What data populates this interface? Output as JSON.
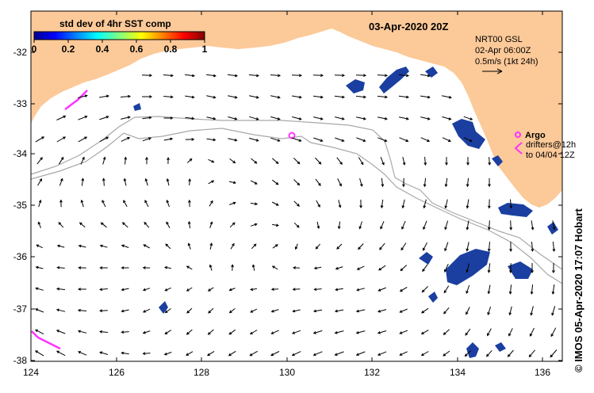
{
  "map": {
    "date_title": "03-Apr-2020 20Z",
    "colorbar": {
      "title": "std dev of 4hr SST comp",
      "ticks": [
        "0",
        "0.2",
        "0.4",
        "0.6",
        "0.8",
        "1"
      ]
    },
    "y_ticks": [
      "-32",
      "-33",
      "-34",
      "-35",
      "-36",
      "-37",
      "-38"
    ],
    "x_ticks": [
      "124",
      "126",
      "128",
      "130",
      "132",
      "134",
      "136"
    ],
    "product": {
      "line1": "NRT00 GSL",
      "line2": "02-Apr 06:00Z",
      "line3": "0.5m/s (1kt 24h)"
    },
    "legend": {
      "argo": "Argo",
      "drifters_line1": "drifters@12h",
      "drifters_line2": "to 04/04 12Z"
    },
    "credit": "© IMOS 05-Apr-2020 17:07 Hobart",
    "colors": {
      "land": "#fcc998",
      "sea": "#ffffff",
      "current_arrows": "#000000",
      "shelf_contour": "#a8a8a8",
      "sst_patches": "#1a3fa0",
      "argo_marker": "#ff33ff",
      "drifter_tracks": "#ff33ff"
    }
  }
}
